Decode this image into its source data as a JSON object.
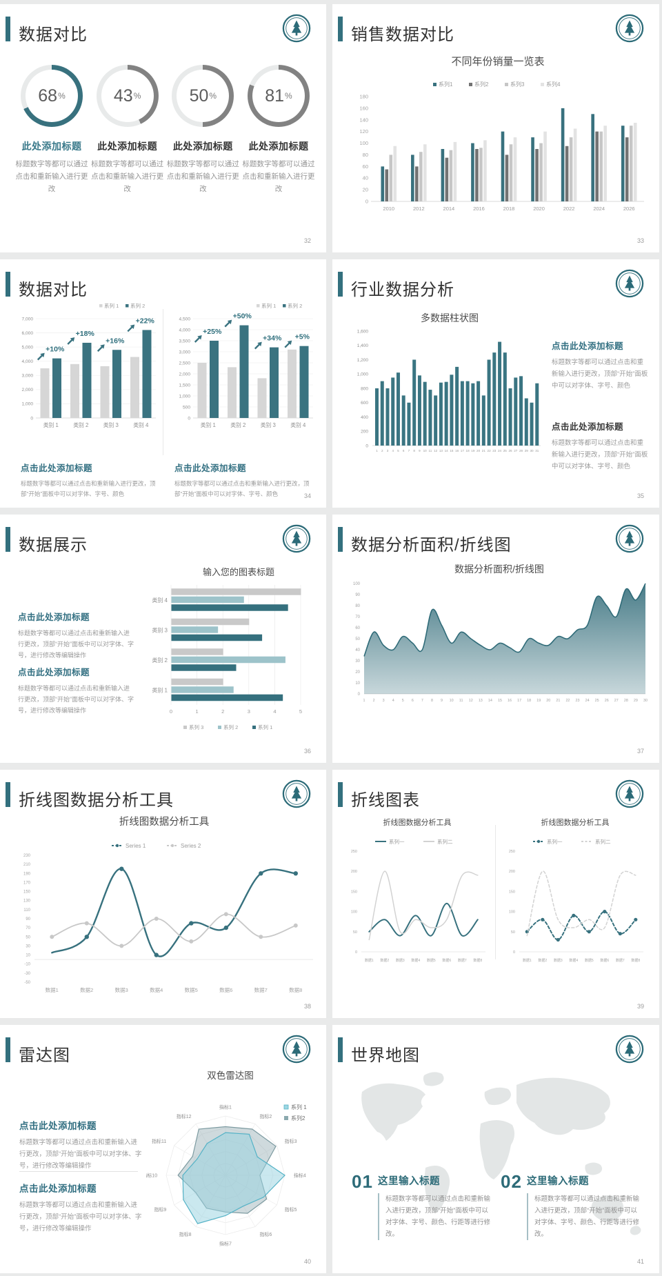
{
  "colors": {
    "teal": "#38717e",
    "teal_dark": "#2f6b78",
    "teal_light": "#9dc3ca",
    "teal_text": "#337082",
    "gray_dark": "#6f6f6f",
    "gray_mid": "#c6c6c6",
    "gray_light": "#e3e3e3",
    "gray_bar": "#d6d6d6",
    "cyan_fill": "rgba(150,210,224,0.5)",
    "cyan_stroke": "#54b2c6",
    "radar2_fill": "rgba(148,174,180,0.45)",
    "radar2_stroke": "#7c9aa0",
    "axis_text": "#9a9a9a",
    "map_gray": "#e3e6e6"
  },
  "slides": [
    {
      "title": "数据对比",
      "page": "32",
      "donuts": [
        {
          "value": "68",
          "suffix": "%",
          "title": "此处添加标题",
          "desc": "标题数字等都可以通过点击和重新输入进行更改",
          "percent": 68,
          "accent": true
        },
        {
          "value": "43",
          "suffix": "%",
          "title": "此处添加标题",
          "desc": "标题数字等都可以通过点击和重新输入进行更改",
          "percent": 43,
          "accent": false
        },
        {
          "value": "50",
          "suffix": "%",
          "title": "此处添加标题",
          "desc": "标题数字等都可以通过点击和重新输入进行更改",
          "percent": 50,
          "accent": false
        },
        {
          "value": "81",
          "suffix": "%",
          "title": "此处添加标题",
          "desc": "标题数字等都可以通过点击和重新输入进行更改",
          "percent": 81,
          "accent": false
        }
      ]
    },
    {
      "title": "销售数据对比",
      "page": "33",
      "chart_data": {
        "type": "bar",
        "title": "不同年份销量一览表",
        "categories": [
          "2010",
          "2012",
          "2014",
          "2016",
          "2018",
          "2020",
          "2022",
          "2024",
          "2026"
        ],
        "series": [
          {
            "name": "系列1",
            "color": "#38717e",
            "values": [
              60,
              80,
              90,
              100,
              120,
              110,
              160,
              150,
              130
            ]
          },
          {
            "name": "系列2",
            "color": "#737373",
            "values": [
              55,
              60,
              75,
              90,
              80,
              90,
              95,
              120,
              110
            ]
          },
          {
            "name": "系列3",
            "color": "#c6c6c6",
            "values": [
              80,
              85,
              88,
              92,
              98,
              100,
              110,
              120,
              130
            ]
          },
          {
            "name": "系列4",
            "color": "#e3e3e3",
            "values": [
              95,
              98,
              102,
              105,
              110,
              120,
              125,
              130,
              135
            ]
          }
        ],
        "ylim": [
          0,
          180
        ],
        "ystep": 20,
        "legend_position": "top",
        "grid": false
      }
    },
    {
      "title": "数据对比",
      "page": "34",
      "chart_data": [
        {
          "type": "bar",
          "categories": [
            "类别 1",
            "类别 2",
            "类别 3",
            "类别 4"
          ],
          "series": [
            {
              "name": "系列 1",
              "color": "#d6d6d6",
              "values": [
                3500,
                3800,
                3650,
                4300
              ]
            },
            {
              "name": "系列 2",
              "color": "#3a7380",
              "values": [
                4200,
                5300,
                4800,
                6200
              ]
            }
          ],
          "labels": [
            "+10%",
            "+18%",
            "+16%",
            "+22%"
          ],
          "ylim": [
            0,
            7000
          ],
          "ystep": 1000,
          "grid": true
        },
        {
          "type": "bar",
          "categories": [
            "类别 1",
            "类别 2",
            "类别 3",
            "类别 4"
          ],
          "series": [
            {
              "name": "系列 1",
              "color": "#d6d6d6",
              "values": [
                2500,
                2300,
                1800,
                3100
              ]
            },
            {
              "name": "系列 2",
              "color": "#3a7380",
              "values": [
                3500,
                4200,
                3200,
                3260
              ]
            }
          ],
          "labels": [
            "+25%",
            "+50%",
            "+34%",
            "+5%"
          ],
          "ylim": [
            0,
            4500
          ],
          "ystep": 500,
          "grid": true
        }
      ],
      "notes": [
        {
          "title": "点击此处添加标题",
          "body": "标题数字等都可以通过点击和重新输入进行更改，顶部“开始”面板中可以对字体、字号、颜色",
          "accent": true
        },
        {
          "title": "点击此处添加标题",
          "body": "标题数字等都可以通过点击和重新输入进行更改，顶部“开始”面板中可以对字体、字号、颜色",
          "accent": true
        }
      ]
    },
    {
      "title": "行业数据分析",
      "page": "35",
      "chart_data": {
        "type": "bar",
        "title": "多数据柱状图",
        "color": "#3a7582",
        "categories": [
          "1",
          "2",
          "3",
          "4",
          "5",
          "6",
          "7",
          "8",
          "9",
          "10",
          "11",
          "12",
          "13",
          "14",
          "15",
          "16",
          "17",
          "18",
          "19",
          "20",
          "21",
          "22",
          "23",
          "24",
          "25",
          "26",
          "27",
          "28",
          "29",
          "30",
          "31"
        ],
        "values": [
          800,
          900,
          800,
          950,
          1020,
          700,
          600,
          1200,
          980,
          890,
          780,
          700,
          880,
          890,
          990,
          1100,
          900,
          900,
          870,
          900,
          700,
          1200,
          1300,
          1450,
          1300,
          800,
          950,
          970,
          660,
          600,
          870
        ],
        "ylim": [
          0,
          1600
        ],
        "ystep": 200,
        "grid": false
      },
      "notes": [
        {
          "title": "点击此处添加标题",
          "body": "标题数字等都可以通过点击和重新输入进行更改，顶部“开始”面板中可以对字体、字号、颜色",
          "accent": true
        },
        {
          "title": "点击此处添加标题",
          "body": "标题数字等都可以通过点击和重新输入进行更改，顶部“开始”面板中可以对字体、字号、颜色",
          "accent": false
        }
      ]
    },
    {
      "title": "数据展示",
      "page": "36",
      "chart_data": {
        "type": "bar",
        "orientation": "horizontal",
        "title": "输入您的图表标题",
        "categories": [
          "类别 1",
          "类别 2",
          "类别 3",
          "类别 4"
        ],
        "series": [
          {
            "name": "系列 1",
            "color": "#35707e",
            "values": [
              4.3,
              2.5,
              3.5,
              4.5
            ]
          },
          {
            "name": "系列 2",
            "color": "#9dc3ca",
            "values": [
              2.4,
              4.4,
              1.8,
              2.8
            ]
          },
          {
            "name": "系列 3",
            "color": "#c9c9c9",
            "values": [
              2,
              2,
              3,
              5
            ]
          }
        ],
        "xlim": [
          0,
          5
        ],
        "xstep": 1,
        "legend_position": "bottom",
        "legend_order": [
          "系列 3",
          "系列 2",
          "系列 1"
        ],
        "grid": true
      },
      "notes": [
        {
          "title": "点击此处添加标题",
          "body": "标题数字等都可以通过点击和重新输入进行更改，顶部“开始”面板中可以对字体、字号，进行修改等编辑操作",
          "accent": true
        },
        {
          "title": "点击此处添加标题",
          "body": "标题数字等都可以通过点击和重新输入进行更改，顶部“开始”面板中可以对字体、字号，进行修改等编辑操作",
          "accent": true
        }
      ]
    },
    {
      "title": "数据分析面积/折线图",
      "page": "37",
      "chart_data": {
        "type": "area",
        "title": "数据分析面积/折线图",
        "color": "#39717e",
        "x": [
          "1",
          "2",
          "3",
          "4",
          "5",
          "6",
          "7",
          "8",
          "9",
          "10",
          "11",
          "12",
          "13",
          "14",
          "15",
          "16",
          "17",
          "18",
          "19",
          "20",
          "21",
          "22",
          "23",
          "24",
          "25",
          "26",
          "27",
          "28",
          "29",
          "30"
        ],
        "values": [
          34,
          56,
          44,
          40,
          52,
          46,
          40,
          76,
          62,
          46,
          56,
          50,
          44,
          40,
          46,
          42,
          38,
          50,
          46,
          44,
          52,
          50,
          58,
          62,
          88,
          80,
          70,
          95,
          85,
          100
        ],
        "ylim": [
          0,
          100
        ],
        "ystep": 10,
        "grid": false
      }
    },
    {
      "title": "折线图数据分析工具",
      "page": "38",
      "chart_data": {
        "type": "line",
        "title": "折线图数据分析工具",
        "x": [
          "数据1",
          "数据2",
          "数据3",
          "数据4",
          "数据5",
          "数据6",
          "数据7",
          "数据8"
        ],
        "series": [
          {
            "name": "Series 1",
            "color": "#37717e",
            "values": [
              15,
              50,
              200,
              10,
              80,
              70,
              190,
              190
            ],
            "dots": true
          },
          {
            "name": "Series 2",
            "color": "#c8c8c8",
            "values": [
              50,
              80,
              30,
              90,
              40,
              100,
              50,
              75
            ],
            "dots": true
          }
        ],
        "ylim": [
          -50,
          230
        ],
        "ystep": 20,
        "legend_position": "top"
      }
    },
    {
      "title": "折线图表",
      "page": "39",
      "chart_data": [
        {
          "type": "line",
          "title": "折线图数据分析工具",
          "x": [
            "数据1",
            "数据2",
            "数据3",
            "数据4",
            "数据5",
            "数据6",
            "数据7",
            "数据8"
          ],
          "series": [
            {
              "name": "系列一",
              "color": "#37717e",
              "values": [
                50,
                80,
                40,
                90,
                40,
                120,
                40,
                80
              ],
              "dots": false
            },
            {
              "name": "系列二",
              "color": "#d2d2d2",
              "values": [
                30,
                200,
                50,
                80,
                60,
                80,
                190,
                190
              ],
              "dots": false
            }
          ],
          "ylim": [
            0,
            250
          ],
          "ystep": 50
        },
        {
          "type": "line",
          "title": "折线图数据分析工具",
          "x": [
            "数据1",
            "数据2",
            "数据3",
            "数据4",
            "数据5",
            "数据6",
            "数据7",
            "数据8"
          ],
          "series": [
            {
              "name": "系列一",
              "color": "#37717e",
              "values": [
                50,
                80,
                30,
                90,
                50,
                100,
                45,
                80
              ],
              "dots": true,
              "dashed": true
            },
            {
              "name": "系列二",
              "color": "#d2d2d2",
              "values": [
                40,
                200,
                80,
                60,
                80,
                60,
                190,
                190
              ],
              "dots": false,
              "dashed": true
            }
          ],
          "ylim": [
            0,
            250
          ],
          "ystep": 50
        }
      ]
    },
    {
      "title": "雷达图",
      "page": "40",
      "chart_data": {
        "type": "radar",
        "title": "双色雷达图",
        "axes": [
          "指标1",
          "指标2",
          "指标3",
          "指标4",
          "指标5",
          "指标6",
          "指标7",
          "指标8",
          "指标9",
          "指标10",
          "指标11",
          "指标12"
        ],
        "series": [
          {
            "name": "系列 1",
            "fractions": [
              0.72,
              0.8,
              0.62,
              1.0,
              0.74,
              0.6,
              0.68,
              0.94,
              0.82,
              0.72,
              0.55,
              0.62
            ]
          },
          {
            "name": "系列2",
            "fractions": [
              0.82,
              0.9,
              0.98,
              0.58,
              0.8,
              0.74,
              0.62,
              0.64,
              0.58,
              0.8,
              0.64,
              0.9
            ]
          }
        ]
      },
      "notes": [
        {
          "title": "点击此处添加标题",
          "body": "标题数字等都可以通过点击和重新输入进行更改，顶部“开始”面板中可以对字体、字号，进行修改等编辑操作",
          "accent": true
        },
        {
          "title": "点击此处添加标题",
          "body": "标题数字等都可以通过点击和重新输入进行更改，顶部“开始”面板中可以对字体、字号，进行修改等编辑操作",
          "accent": true
        }
      ]
    },
    {
      "title": "世界地图",
      "page": "41",
      "items": [
        {
          "num": "01",
          "title": "这里输入标题",
          "body": "标题数字等都可以通过点击和重新输入进行更改，顶部“开始”面板中可以对字体、字号、颜色、行距等进行修改。"
        },
        {
          "num": "02",
          "title": "这里输入标题",
          "body": "标题数字等都可以通过点击和重新输入进行更改，顶部“开始”面板中可以对字体、字号、颜色、行距等进行修改。"
        }
      ]
    }
  ]
}
